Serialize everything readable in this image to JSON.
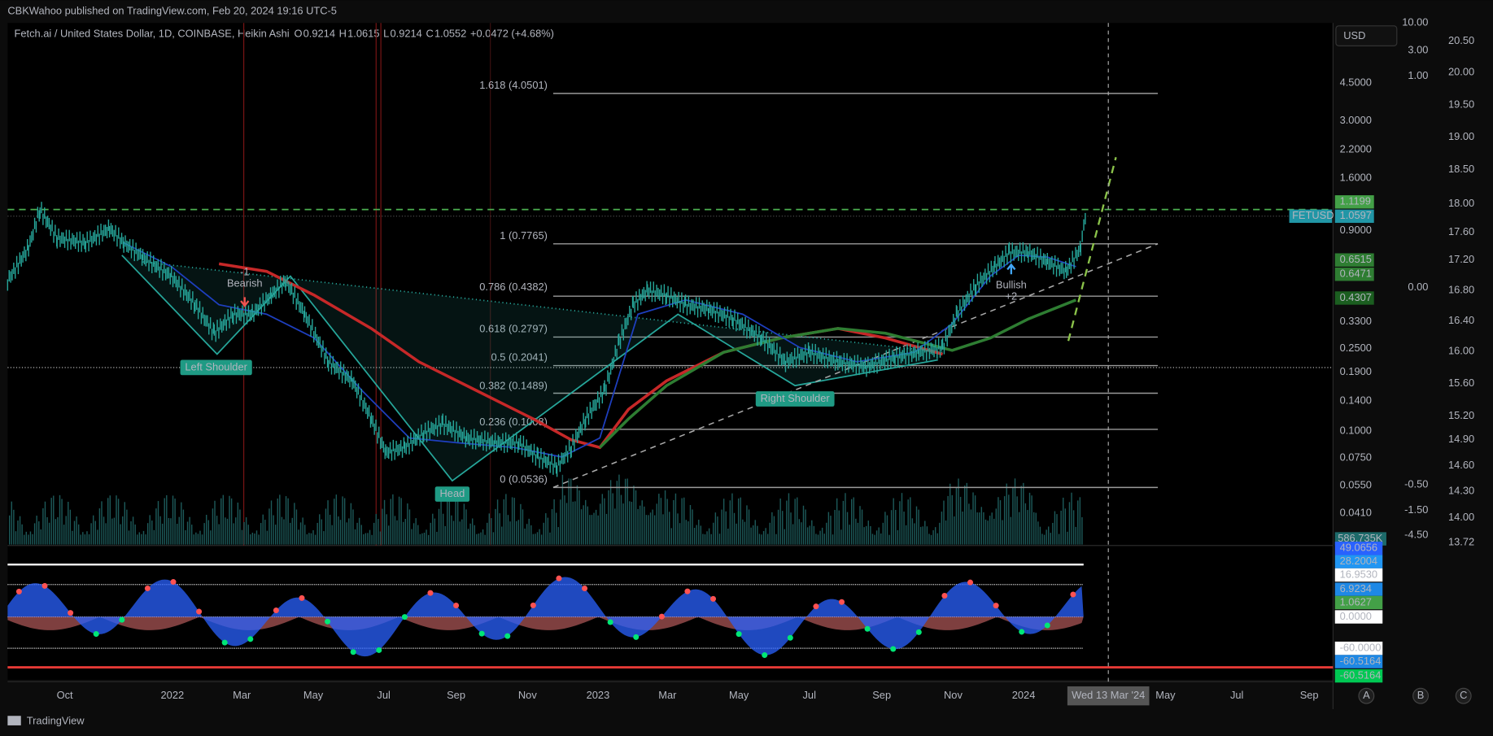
{
  "header": {
    "publisher": "CBKWahoo published on TradingView.com, Feb 20, 2024 19:16 UTC-5"
  },
  "legend": {
    "symbol": "Fetch.ai / United States Dollar, 1D, COINBASE, Heikin Ashi",
    "o": "O",
    "open": "0.9214",
    "h": "H",
    "high": "1.0615",
    "l": "L",
    "low": "0.9214",
    "c": "C",
    "close": "1.0552",
    "change": "+0.0472 (+4.68%)"
  },
  "currency": "USD",
  "fib_levels": [
    "1.618 (4.0501)",
    "1 (0.7765)",
    "0.786 (0.4382)",
    "0.618 (0.2797)",
    "0.5 (0.2041)",
    "0.382 (0.1489)",
    "0.236 (0.1008)",
    "0 (0.0536)"
  ],
  "annotations": {
    "left_shoulder": "Left Shoulder",
    "head": "Head",
    "right_shoulder": "Right Shoulder",
    "bearish": "Bearish",
    "bearish_count": "-1",
    "bullish": "Bullish",
    "bullish_count": "+2"
  },
  "price_axis": [
    "4.5000",
    "3.0000",
    "2.2000",
    "1.6000",
    "0.9000",
    "0.3300",
    "0.2500",
    "0.1900",
    "0.1400",
    "0.1000",
    "0.0750",
    "0.0550",
    "0.0410"
  ],
  "price_tags": [
    "1.1199",
    "1.0597",
    "0.6515",
    "0.6471",
    "0.4307"
  ],
  "symbol_tag": "FETUSD",
  "volume_tag": "586.735K",
  "left_axis2": [
    "10.00",
    "3.00",
    "1.00",
    "0.00",
    "-0.50",
    "-1.50",
    "-4.50"
  ],
  "right_axis": [
    "20.50",
    "20.00",
    "19.50",
    "19.00",
    "18.50",
    "18.00",
    "17.60",
    "17.20",
    "16.80",
    "16.40",
    "16.00",
    "15.60",
    "15.20",
    "14.90",
    "14.60",
    "14.30",
    "14.00",
    "13.72"
  ],
  "oscillator_tags": [
    "49.0656",
    "28.2004",
    "16.9530",
    "6.9234",
    "1.0627",
    "0.0000",
    "-60.0000",
    "-60.5164",
    "-60.5164"
  ],
  "time_axis": [
    "Oct",
    "2022",
    "Mar",
    "May",
    "Jul",
    "Sep",
    "Nov",
    "2023",
    "Mar",
    "May",
    "Jul",
    "Sep",
    "Nov",
    "2024",
    "May",
    "Jul",
    "Sep"
  ],
  "crosshair_date": "Wed 13 Mar '24",
  "buttons": [
    "A",
    "B",
    "C"
  ],
  "footer": "TradingView"
}
